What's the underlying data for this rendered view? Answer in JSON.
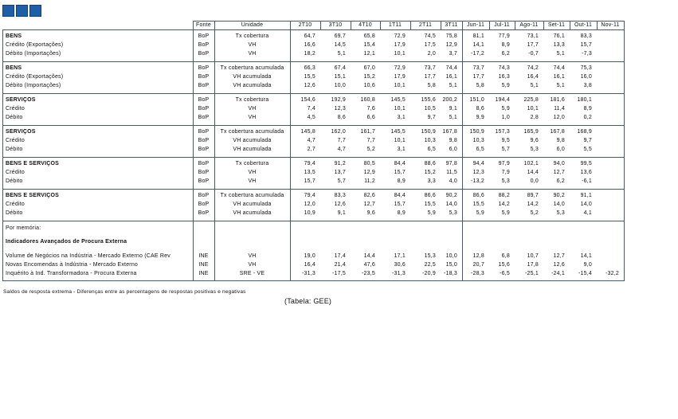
{
  "table": {
    "header": [
      "Fonte",
      "Unidade",
      "2T10",
      "3T10",
      "4T10",
      "1T11",
      "2T11",
      "3T11",
      "Jun-11",
      "Jul-11",
      "Ago-11",
      "Set-11",
      "Out-11",
      "Nov-11"
    ],
    "groups": [
      {
        "rows": [
          {
            "label": "BENS",
            "source": "BoP",
            "unit": "Tx cobertura",
            "values": [
              "64,7",
              "69,7",
              "65,8",
              "72,9",
              "74,5",
              "75,8",
              "81,1",
              "77,9",
              "73,1",
              "76,1",
              "83,3"
            ]
          },
          {
            "label": "Crédito (Exportações)",
            "source": "BoP",
            "unit": "VH",
            "values": [
              "16,6",
              "14,5",
              "15,4",
              "17,9",
              "17,5",
              "12,9",
              "14,1",
              "8,9",
              "17,7",
              "13,3",
              "15,7"
            ]
          },
          {
            "label": "Débito (Importações)",
            "source": "BoP",
            "unit": "VH",
            "values": [
              "18,2",
              "5,1",
              "12,1",
              "10,1",
              "2,0",
              "3,7",
              "-17,2",
              "6,2",
              "-0,7",
              "5,1",
              "-7,3"
            ]
          }
        ]
      },
      {
        "rows": [
          {
            "label": "BENS",
            "source": "BoP",
            "unit": "Tx cobertura acumulada",
            "values": [
              "66,3",
              "67,4",
              "67,0",
              "72,9",
              "73,7",
              "74,4",
              "73,7",
              "74,3",
              "74,2",
              "74,4",
              "75,3"
            ]
          },
          {
            "label": "Crédito (Exportações)",
            "source": "BoP",
            "unit": "VH acumulada",
            "values": [
              "15,5",
              "15,1",
              "15,2",
              "17,9",
              "17,7",
              "16,1",
              "17,7",
              "16,3",
              "16,4",
              "16,1",
              "16,0"
            ]
          },
          {
            "label": "Débito (Importações)",
            "source": "BoP",
            "unit": "VH acumulada",
            "values": [
              "12,6",
              "10,0",
              "10,6",
              "10,1",
              "5,8",
              "5,1",
              "5,8",
              "5,9",
              "5,1",
              "5,1",
              "3,8"
            ]
          }
        ]
      },
      {
        "rows": [
          {
            "label": "SERVIÇOS",
            "source": "BoP",
            "unit": "Tx cobertura",
            "values": [
              "154,6",
              "192,9",
              "160,8",
              "145,5",
              "155,6",
              "200,2",
              "151,0",
              "194,4",
              "225,8",
              "181,6",
              "180,1"
            ]
          },
          {
            "label": "Crédito",
            "source": "BoP",
            "unit": "VH",
            "values": [
              "7,4",
              "12,3",
              "7,6",
              "10,1",
              "10,5",
              "9,1",
              "8,6",
              "5,9",
              "10,1",
              "11,4",
              "8,9"
            ]
          },
          {
            "label": "Débito",
            "source": "BoP",
            "unit": "VH",
            "values": [
              "4,5",
              "8,6",
              "6,6",
              "3,1",
              "9,7",
              "5,1",
              "9,9",
              "1,0",
              "2,8",
              "12,0",
              "0,2"
            ]
          }
        ]
      },
      {
        "rows": [
          {
            "label": "SERVIÇOS",
            "source": "BoP",
            "unit": "Tx cobertura acumulada",
            "values": [
              "145,8",
              "162,0",
              "161,7",
              "145,5",
              "150,9",
              "167,8",
              "150,9",
              "157,3",
              "165,9",
              "167,8",
              "168,9"
            ]
          },
          {
            "label": "Crédito",
            "source": "BoP",
            "unit": "VH acumulada",
            "values": [
              "4,7",
              "7,7",
              "7,7",
              "10,1",
              "10,3",
              "9,8",
              "10,3",
              "9,5",
              "9,6",
              "9,8",
              "9,7"
            ]
          },
          {
            "label": "Débito",
            "source": "BoP",
            "unit": "VH acumulada",
            "values": [
              "2,7",
              "4,7",
              "5,2",
              "3,1",
              "6,5",
              "6,0",
              "6,5",
              "5,7",
              "5,3",
              "6,0",
              "5,5"
            ]
          }
        ]
      },
      {
        "rows": [
          {
            "label": "BENS E SERVIÇOS",
            "source": "BoP",
            "unit": "Tx cobertura",
            "values": [
              "79,4",
              "91,2",
              "80,5",
              "84,4",
              "88,6",
              "97,8",
              "94,4",
              "97,9",
              "102,1",
              "94,0",
              "99,5"
            ]
          },
          {
            "label": "Crédito",
            "source": "BoP",
            "unit": "VH",
            "values": [
              "13,5",
              "13,7",
              "12,9",
              "15,7",
              "15,2",
              "11,5",
              "12,3",
              "7,9",
              "14,4",
              "12,7",
              "13,6"
            ]
          },
          {
            "label": "Débito",
            "source": "BoP",
            "unit": "VH",
            "values": [
              "15,7",
              "5,7",
              "11,2",
              "8,9",
              "3,3",
              "4,0",
              "-13,2",
              "5,3",
              "0,0",
              "6,2",
              "-6,1"
            ]
          }
        ]
      },
      {
        "rows": [
          {
            "label": "BENS E SERVIÇOS",
            "source": "BoP",
            "unit": "Tx cobertura acumulada",
            "values": [
              "79,4",
              "83,3",
              "82,6",
              "84,4",
              "86,6",
              "90,2",
              "86,6",
              "88,2",
              "89,7",
              "90,2",
              "91,1"
            ]
          },
          {
            "label": "Crédito",
            "source": "BoP",
            "unit": "VH acumulada",
            "values": [
              "12,0",
              "12,6",
              "12,7",
              "15,7",
              "15,5",
              "14,0",
              "15,5",
              "14,2",
              "14,2",
              "14,0",
              "14,0"
            ]
          },
          {
            "label": "Débito",
            "source": "BoP",
            "unit": "VH acumulada",
            "values": [
              "10,9",
              "9,1",
              "9,6",
              "8,9",
              "5,9",
              "5,3",
              "5,9",
              "5,9",
              "5,2",
              "5,3",
              "4,1"
            ]
          }
        ]
      }
    ],
    "memo": {
      "label": "Por memória:",
      "subtitle": "Indicadores Avançados de Procura Externa",
      "rows": [
        {
          "label": "Volume de Negócios na Indústria - Mercado Externo (CAE Rev",
          "source": "INE",
          "unit": "VH",
          "values": [
            "19,0",
            "17,4",
            "14,4",
            "17,1",
            "15,3",
            "10,0",
            "12,8",
            "6,8",
            "10,7",
            "12,7",
            "14,1"
          ]
        },
        {
          "label": "Novas Encomendas à Indústria - Mercado Externo",
          "source": "INE",
          "unit": "VH",
          "values": [
            "16,4",
            "21,4",
            "47,6",
            "30,6",
            "22,5",
            "15,0",
            "20,7",
            "15,6",
            "17,8",
            "12,6",
            "9,0"
          ]
        },
        {
          "label": "Inquérito à Ind. Transformadora - Procura Externa",
          "source": "INE",
          "unit": "SRE - VE",
          "values": [
            "-31,3",
            "-17,5",
            "-23,5",
            "-31,3",
            "-20,9",
            "-18,3",
            "-28,3",
            "-6,5",
            "-25,1",
            "-24,1",
            "-15,4",
            "-32,2"
          ]
        }
      ]
    },
    "footnote": "Saldos de resposta extrema - Diferenças entre as percentagens de respostas positivas e negativas",
    "source_note": "(Tabela: GEE)"
  }
}
